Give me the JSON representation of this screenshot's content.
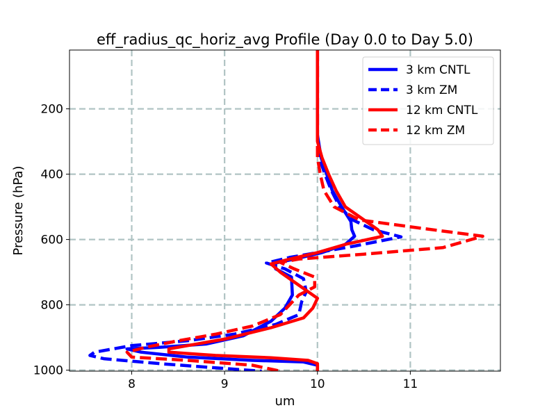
{
  "chart_data": {
    "type": "line",
    "title": "eff_radius_qc_horiz_avg Profile (Day 0.0 to Day 5.0)",
    "xlabel": "um",
    "ylabel": "Pressure (hPa)",
    "xlim": [
      7.33,
      11.97
    ],
    "ylim": [
      1003,
      20
    ],
    "y_inverted": true,
    "xticks": [
      8,
      9,
      10,
      11
    ],
    "yticks": [
      200,
      400,
      600,
      800,
      1000
    ],
    "grid": true,
    "legend_loc": "upper right",
    "series": [
      {
        "name": "3 km CNTL",
        "color": "#0000ff",
        "linestyle": "solid",
        "points": [
          [
            10,
            20
          ],
          [
            10,
            100
          ],
          [
            10,
            200
          ],
          [
            10,
            280
          ],
          [
            10.04,
            350
          ],
          [
            10.1,
            400
          ],
          [
            10.16,
            450
          ],
          [
            10.26,
            500
          ],
          [
            10.36,
            545
          ],
          [
            10.37,
            570
          ],
          [
            10.4,
            590
          ],
          [
            10.3,
            615
          ],
          [
            10.05,
            640
          ],
          [
            9.75,
            660
          ],
          [
            9.55,
            672
          ],
          [
            9.55,
            690
          ],
          [
            9.72,
            715
          ],
          [
            9.73,
            770
          ],
          [
            9.65,
            810
          ],
          [
            9.5,
            850
          ],
          [
            9.2,
            895
          ],
          [
            8.8,
            920
          ],
          [
            8.3,
            930
          ],
          [
            7.95,
            935
          ],
          [
            8.1,
            945
          ],
          [
            8.6,
            960
          ],
          [
            9.3,
            970
          ],
          [
            9.85,
            975
          ],
          [
            10,
            985
          ],
          [
            10,
            1003
          ]
        ]
      },
      {
        "name": "3 km ZM",
        "color": "#0000ff",
        "linestyle": "dashed",
        "points": [
          [
            10,
            20
          ],
          [
            10,
            100
          ],
          [
            10,
            200
          ],
          [
            10,
            280
          ],
          [
            10.02,
            350
          ],
          [
            10.08,
            400
          ],
          [
            10.15,
            450
          ],
          [
            10.24,
            500
          ],
          [
            10.38,
            540
          ],
          [
            10.6,
            570
          ],
          [
            10.9,
            592
          ],
          [
            10.4,
            620
          ],
          [
            10.0,
            640
          ],
          [
            9.7,
            655
          ],
          [
            9.45,
            672
          ],
          [
            9.65,
            690
          ],
          [
            9.85,
            720
          ],
          [
            9.88,
            760
          ],
          [
            9.83,
            790
          ],
          [
            9.8,
            830
          ],
          [
            9.55,
            860
          ],
          [
            9.1,
            890
          ],
          [
            8.6,
            910
          ],
          [
            8.0,
            925
          ],
          [
            7.6,
            945
          ],
          [
            7.55,
            955
          ],
          [
            7.7,
            965
          ],
          [
            8.3,
            980
          ],
          [
            9.0,
            995
          ],
          [
            9.4,
            1003
          ]
        ]
      },
      {
        "name": "12 km CNTL",
        "color": "#ff0000",
        "linestyle": "solid",
        "points": [
          [
            10,
            20
          ],
          [
            10,
            100
          ],
          [
            10,
            200
          ],
          [
            10,
            300
          ],
          [
            10.05,
            350
          ],
          [
            10.12,
            400
          ],
          [
            10.2,
            450
          ],
          [
            10.3,
            500
          ],
          [
            10.5,
            540
          ],
          [
            10.65,
            570
          ],
          [
            10.7,
            590
          ],
          [
            10.3,
            615
          ],
          [
            10.0,
            640
          ],
          [
            9.7,
            660
          ],
          [
            9.5,
            675
          ],
          [
            9.6,
            700
          ],
          [
            9.8,
            740
          ],
          [
            10.0,
            780
          ],
          [
            9.95,
            810
          ],
          [
            9.85,
            840
          ],
          [
            9.5,
            870
          ],
          [
            9.0,
            905
          ],
          [
            8.6,
            925
          ],
          [
            8.4,
            935
          ],
          [
            8.4,
            945
          ],
          [
            8.9,
            955
          ],
          [
            9.5,
            962
          ],
          [
            9.9,
            970
          ],
          [
            10.0,
            980
          ],
          [
            10.0,
            1003
          ]
        ]
      },
      {
        "name": "12 km ZM",
        "color": "#ff0000",
        "linestyle": "dashed",
        "points": [
          [
            10,
            20
          ],
          [
            10,
            100
          ],
          [
            10,
            200
          ],
          [
            10,
            300
          ],
          [
            10.0,
            350
          ],
          [
            10.03,
            400
          ],
          [
            10.07,
            450
          ],
          [
            10.18,
            500
          ],
          [
            10.45,
            540
          ],
          [
            11.1,
            565
          ],
          [
            11.78,
            590
          ],
          [
            11.35,
            625
          ],
          [
            10.5,
            645
          ],
          [
            9.8,
            660
          ],
          [
            9.6,
            670
          ],
          [
            9.75,
            690
          ],
          [
            9.97,
            715
          ],
          [
            9.97,
            745
          ],
          [
            9.8,
            770
          ],
          [
            9.7,
            800
          ],
          [
            9.6,
            830
          ],
          [
            9.3,
            865
          ],
          [
            8.9,
            890
          ],
          [
            8.5,
            910
          ],
          [
            8.15,
            930
          ],
          [
            7.95,
            945
          ],
          [
            8.0,
            960
          ],
          [
            8.6,
            970
          ],
          [
            9.3,
            985
          ],
          [
            9.6,
            1003
          ]
        ]
      }
    ]
  }
}
